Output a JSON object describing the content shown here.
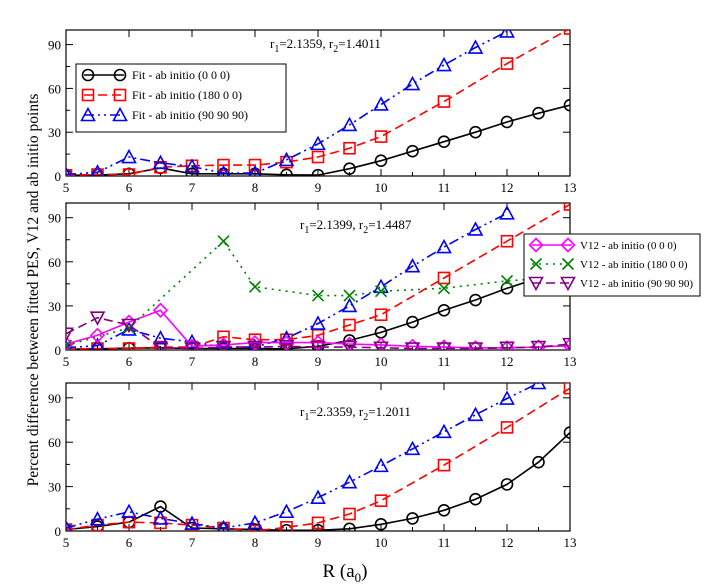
{
  "figure": {
    "ylabel": "Percent difference between fitted PES, V12 and ab initio points",
    "xlabel_main": "R (a",
    "xlabel_sub": "0",
    "xlabel_close": ")"
  },
  "chart_data": [
    {
      "type": "line",
      "panel": "top",
      "annotation": {
        "r1": "2.1359",
        "r2": "1.4011"
      },
      "xlim": [
        5,
        13
      ],
      "ylim": [
        0,
        100
      ],
      "xticks": [
        5,
        6,
        7,
        8,
        9,
        10,
        11,
        12,
        13
      ],
      "yticks": [
        0,
        30,
        60,
        90
      ],
      "legend_position": "top-left",
      "series": [
        {
          "name": "Fit - ab initio (0 0 0)",
          "color": "#000000",
          "marker": "circle",
          "dash": "",
          "x": [
            5,
            5.5,
            6,
            6.5,
            7,
            7.5,
            8,
            8.5,
            9,
            9.5,
            10,
            10.5,
            11,
            11.5,
            12,
            12.5,
            13
          ],
          "y": [
            0.5,
            0.7,
            1.5,
            5.5,
            1.5,
            1.5,
            1.5,
            0.8,
            0.6,
            5,
            10.5,
            17,
            23.5,
            30,
            37,
            43,
            48.5
          ]
        },
        {
          "name": "Fit - ab initio (180 0 0)",
          "color": "#ff0000",
          "marker": "square",
          "dash": "9,5",
          "x": [
            5,
            5.5,
            6,
            6.5,
            7,
            7.5,
            8,
            8.5,
            9,
            9.5,
            10,
            11,
            12,
            13
          ],
          "y": [
            0.5,
            1,
            1,
            6,
            7,
            7.5,
            7.5,
            9.5,
            13,
            19,
            27,
            51,
            77,
            101
          ]
        },
        {
          "name": "Fit - ab initio (90 90 90)",
          "color": "#0000ff",
          "marker": "triangle-up",
          "dash": "10,4,2,4,2,4",
          "x": [
            5,
            5.5,
            6,
            6.5,
            7,
            7.5,
            8,
            8.5,
            9,
            9.5,
            10,
            10.5,
            11,
            11.5,
            12
          ],
          "y": [
            1,
            2.5,
            13,
            9,
            6.5,
            2,
            2,
            11,
            22,
            35,
            49,
            63,
            76,
            88,
            99
          ]
        }
      ]
    },
    {
      "type": "line",
      "panel": "middle",
      "annotation": {
        "r1": "2.1399",
        "r2": "1.4487"
      },
      "xlim": [
        5,
        13
      ],
      "ylim": [
        0,
        100
      ],
      "xticks": [
        5,
        6,
        7,
        8,
        9,
        10,
        11,
        12,
        13
      ],
      "yticks": [
        0,
        30,
        60,
        90
      ],
      "legend_position": "right",
      "series": [
        {
          "name": "Fit (0 0 0)",
          "color": "#000000",
          "marker": "circle",
          "dash": "",
          "legend": false,
          "x": [
            5,
            5.5,
            6,
            6.5,
            7,
            7.5,
            8,
            8.5,
            9,
            9.5,
            10,
            10.5,
            11,
            11.5,
            12,
            12.5,
            13
          ],
          "y": [
            0.5,
            0.8,
            1.2,
            1.5,
            1,
            1,
            1,
            0.8,
            2.5,
            6.5,
            12,
            19,
            27,
            34,
            42,
            49,
            55
          ]
        },
        {
          "name": "Fit (180 0 0)",
          "color": "#ff0000",
          "marker": "square",
          "dash": "9,5",
          "legend": false,
          "x": [
            5,
            5.5,
            6,
            6.5,
            7,
            7.5,
            8,
            8.5,
            9,
            9.5,
            10,
            11,
            12,
            13
          ],
          "y": [
            0.5,
            1,
            1,
            2,
            2,
            9,
            7,
            7,
            10,
            17,
            24,
            49,
            74,
            99
          ]
        },
        {
          "name": "Fit (90 90 90)",
          "color": "#0000ff",
          "marker": "triangle-up",
          "dash": "10,4,2,4,2,4",
          "legend": false,
          "x": [
            5,
            5.5,
            6,
            6.5,
            7,
            7.5,
            8,
            8.5,
            9,
            9.5,
            10,
            10.5,
            11,
            11.5,
            12
          ],
          "y": [
            1.5,
            3,
            14,
            8,
            5.5,
            2,
            2,
            8,
            18,
            30,
            43,
            57,
            70,
            82,
            93
          ]
        },
        {
          "name": "V12 - ab initio (0 0 0)",
          "color": "#ff00ff",
          "marker": "diamond",
          "dash": "",
          "legend": true,
          "x": [
            5,
            5.5,
            6,
            6.5,
            7,
            7.5,
            8,
            8.5,
            9,
            9.5,
            10,
            10.5,
            11,
            11.5,
            12,
            12.5,
            13
          ],
          "y": [
            4,
            10,
            19,
            27,
            2.5,
            3.5,
            5,
            5,
            5,
            4,
            3.5,
            2.5,
            2,
            1.5,
            1.5,
            2,
            3
          ]
        },
        {
          "name": "V12 - ab initio (180 0 0)",
          "color": "#008000",
          "marker": "x",
          "dash": "2,5",
          "legend": true,
          "x": [
            5,
            6,
            7.5,
            8,
            9,
            9.5,
            10,
            11,
            12,
            13
          ],
          "y": [
            3,
            15,
            74,
            43,
            37,
            37,
            40,
            42,
            47,
            50
          ]
        },
        {
          "name": "V12 - ab initio (90 90 90)",
          "color": "#800080",
          "marker": "triangle-down",
          "dash": "9,5",
          "legend": true,
          "x": [
            5,
            5.5,
            6,
            6.5,
            7,
            7.5,
            8,
            8.5,
            9,
            9.5,
            10,
            10.5,
            11,
            11.5,
            12,
            12.5,
            13
          ],
          "y": [
            11,
            22,
            17,
            1.5,
            1,
            2,
            2,
            2.5,
            2,
            2,
            1.5,
            1,
            1,
            1,
            1.5,
            2,
            4
          ]
        }
      ]
    },
    {
      "type": "line",
      "panel": "bottom",
      "annotation": {
        "r1": "2.3359",
        "r2": "1.2011"
      },
      "xlim": [
        5,
        13
      ],
      "ylim": [
        0,
        100
      ],
      "xticks": [
        5,
        6,
        7,
        8,
        9,
        10,
        11,
        12,
        13
      ],
      "yticks": [
        0,
        30,
        60,
        90
      ],
      "legend_position": "none",
      "series": [
        {
          "name": "Fit (0 0 0)",
          "color": "#000000",
          "marker": "circle",
          "dash": "",
          "legend": false,
          "x": [
            5,
            5.5,
            6,
            6.5,
            7,
            7.5,
            8,
            8.5,
            9,
            9.5,
            10,
            10.5,
            11,
            11.5,
            12,
            12.5,
            13
          ],
          "y": [
            1,
            3,
            6,
            16.5,
            2,
            1.5,
            1,
            0.5,
            0.5,
            1.5,
            4.5,
            8.5,
            14,
            21.5,
            31.5,
            46.5,
            66.5
          ]
        },
        {
          "name": "Fit (180 0 0)",
          "color": "#ff0000",
          "marker": "square",
          "dash": "9,5",
          "legend": false,
          "x": [
            5,
            5.5,
            6,
            6.5,
            7,
            7.5,
            8,
            8.5,
            9,
            9.5,
            10,
            11,
            12,
            13
          ],
          "y": [
            1,
            4,
            6,
            5.5,
            4,
            2,
            0,
            2.5,
            5.5,
            11.5,
            20.5,
            44.5,
            70,
            96.5
          ]
        },
        {
          "name": "Fit (90 90 90)",
          "color": "#0000ff",
          "marker": "triangle-up",
          "dash": "10,4,2,4,2,4",
          "legend": false,
          "x": [
            5,
            5.5,
            6,
            6.5,
            7,
            7.5,
            8,
            8.5,
            9,
            9.5,
            10,
            10.5,
            11,
            11.5,
            12,
            12.5
          ],
          "y": [
            2,
            8,
            13,
            8.5,
            5,
            2,
            5.5,
            13,
            22.5,
            33,
            44,
            55.5,
            67,
            78.5,
            89.5,
            100
          ]
        }
      ]
    }
  ]
}
